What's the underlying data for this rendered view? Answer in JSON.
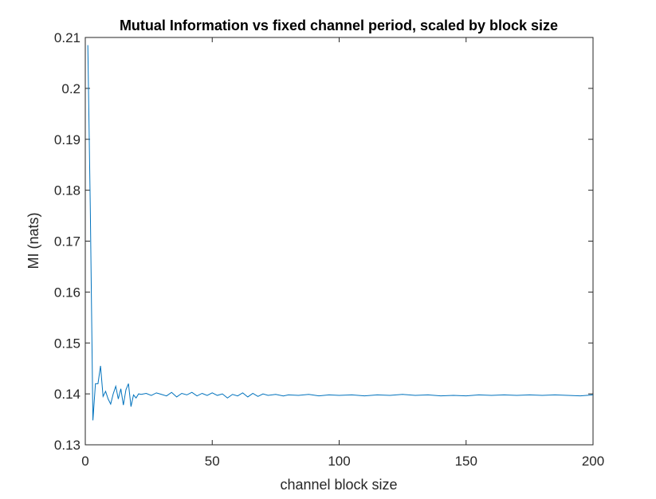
{
  "chart_data": {
    "type": "line",
    "title": "Mutual Information vs fixed channel period, scaled by block size",
    "xlabel": "channel block size",
    "ylabel": "MI (nats)",
    "xlim": [
      0,
      200
    ],
    "ylim": [
      0.13,
      0.21
    ],
    "xticks": [
      0,
      50,
      100,
      150,
      200
    ],
    "xtick_labels": [
      "0",
      "50",
      "100",
      "150",
      "200"
    ],
    "yticks": [
      0.13,
      0.14,
      0.15,
      0.16,
      0.17,
      0.18,
      0.19,
      0.2,
      0.21
    ],
    "ytick_labels": [
      "0.13",
      "0.14",
      "0.15",
      "0.16",
      "0.17",
      "0.18",
      "0.19",
      "0.2",
      "0.21"
    ],
    "grid": false,
    "line_color": "#0072BD",
    "series": [
      {
        "x": [
          1,
          2,
          3,
          4,
          5,
          6,
          7,
          8,
          9,
          10,
          11,
          12,
          13,
          14,
          15,
          16,
          17,
          18,
          19,
          20,
          21,
          22,
          24,
          26,
          28,
          30,
          32,
          34,
          36,
          38,
          40,
          42,
          44,
          46,
          48,
          50,
          52,
          54,
          56,
          58,
          60,
          62,
          64,
          66,
          68,
          70,
          72,
          75,
          78,
          80,
          84,
          88,
          92,
          96,
          100,
          105,
          110,
          115,
          120,
          125,
          130,
          135,
          140,
          145,
          150,
          155,
          160,
          165,
          170,
          175,
          180,
          185,
          190,
          195,
          200
        ],
        "y": [
          0.2085,
          0.1755,
          0.1348,
          0.142,
          0.142,
          0.1455,
          0.1395,
          0.1405,
          0.139,
          0.138,
          0.14,
          0.1415,
          0.139,
          0.141,
          0.1378,
          0.1408,
          0.142,
          0.1375,
          0.1398,
          0.1392,
          0.14,
          0.1399,
          0.1401,
          0.1397,
          0.1402,
          0.1399,
          0.1396,
          0.1403,
          0.1394,
          0.1401,
          0.1398,
          0.1403,
          0.1396,
          0.1401,
          0.1397,
          0.1402,
          0.1397,
          0.14,
          0.1392,
          0.1399,
          0.1396,
          0.1402,
          0.1394,
          0.1401,
          0.1395,
          0.14,
          0.1397,
          0.1399,
          0.1396,
          0.1398,
          0.1397,
          0.1399,
          0.1396,
          0.1398,
          0.1397,
          0.1398,
          0.1396,
          0.1398,
          0.1397,
          0.1399,
          0.1397,
          0.1398,
          0.1396,
          0.1397,
          0.1396,
          0.1398,
          0.1397,
          0.1398,
          0.1397,
          0.1398,
          0.1397,
          0.1398,
          0.1397,
          0.1396,
          0.1398
        ]
      }
    ]
  }
}
